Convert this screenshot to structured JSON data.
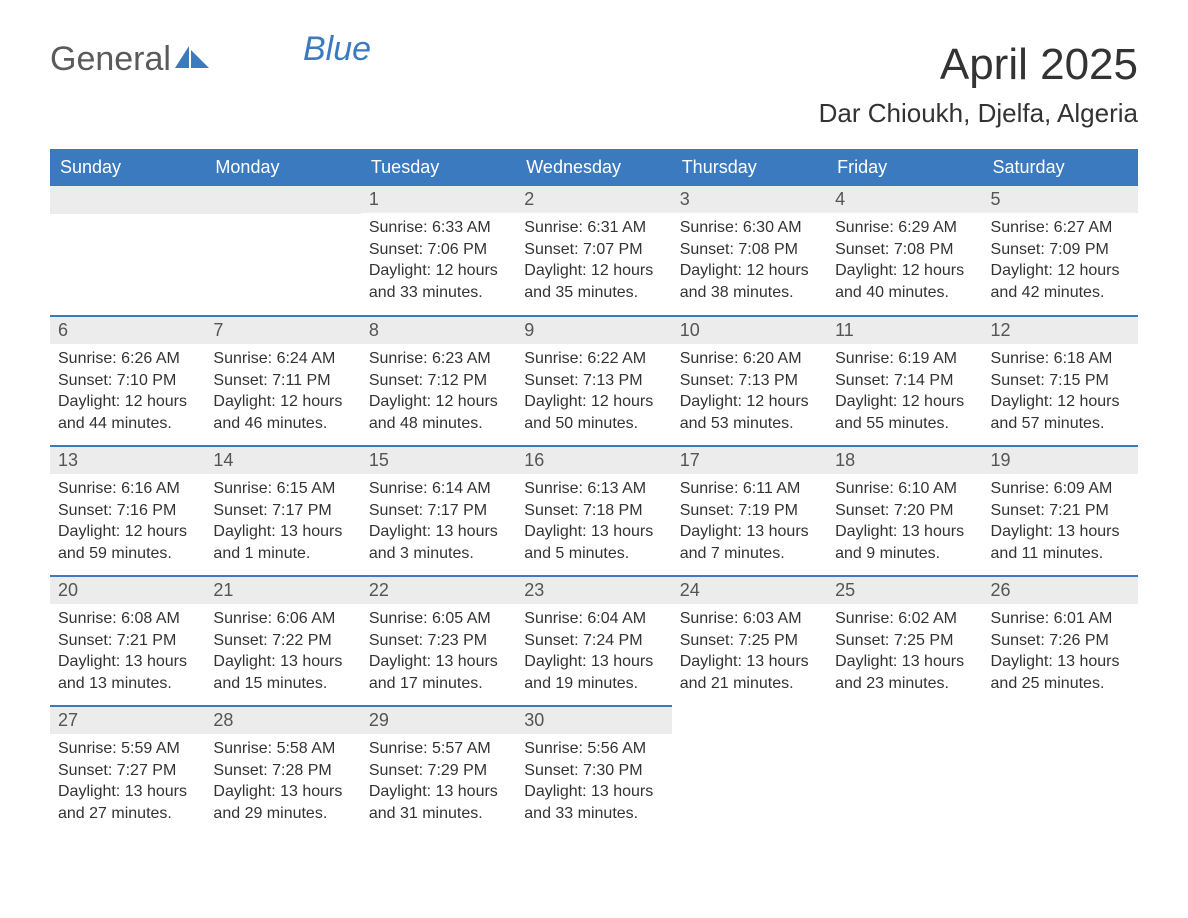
{
  "logo": {
    "text1": "General",
    "text2": "Blue"
  },
  "title": "April 2025",
  "location": "Dar Chioukh, Djelfa, Algeria",
  "colors": {
    "header_bg": "#3b7abf",
    "header_text": "#ffffff",
    "daynum_bg": "#ececec",
    "row_border": "#3b7abf",
    "body_text": "#333333",
    "logo_gray": "#5a5a5a",
    "logo_blue": "#3b7abf",
    "page_bg": "#ffffff"
  },
  "fonts": {
    "title_size_pt": 33,
    "location_size_pt": 20,
    "header_size_pt": 14,
    "daynum_size_pt": 14,
    "content_size_pt": 12
  },
  "weekdays": [
    "Sunday",
    "Monday",
    "Tuesday",
    "Wednesday",
    "Thursday",
    "Friday",
    "Saturday"
  ],
  "weeks": [
    [
      null,
      null,
      {
        "n": "1",
        "sr": "Sunrise: 6:33 AM",
        "ss": "Sunset: 7:06 PM",
        "dl": "Daylight: 12 hours and 33 minutes."
      },
      {
        "n": "2",
        "sr": "Sunrise: 6:31 AM",
        "ss": "Sunset: 7:07 PM",
        "dl": "Daylight: 12 hours and 35 minutes."
      },
      {
        "n": "3",
        "sr": "Sunrise: 6:30 AM",
        "ss": "Sunset: 7:08 PM",
        "dl": "Daylight: 12 hours and 38 minutes."
      },
      {
        "n": "4",
        "sr": "Sunrise: 6:29 AM",
        "ss": "Sunset: 7:08 PM",
        "dl": "Daylight: 12 hours and 40 minutes."
      },
      {
        "n": "5",
        "sr": "Sunrise: 6:27 AM",
        "ss": "Sunset: 7:09 PM",
        "dl": "Daylight: 12 hours and 42 minutes."
      }
    ],
    [
      {
        "n": "6",
        "sr": "Sunrise: 6:26 AM",
        "ss": "Sunset: 7:10 PM",
        "dl": "Daylight: 12 hours and 44 minutes."
      },
      {
        "n": "7",
        "sr": "Sunrise: 6:24 AM",
        "ss": "Sunset: 7:11 PM",
        "dl": "Daylight: 12 hours and 46 minutes."
      },
      {
        "n": "8",
        "sr": "Sunrise: 6:23 AM",
        "ss": "Sunset: 7:12 PM",
        "dl": "Daylight: 12 hours and 48 minutes."
      },
      {
        "n": "9",
        "sr": "Sunrise: 6:22 AM",
        "ss": "Sunset: 7:13 PM",
        "dl": "Daylight: 12 hours and 50 minutes."
      },
      {
        "n": "10",
        "sr": "Sunrise: 6:20 AM",
        "ss": "Sunset: 7:13 PM",
        "dl": "Daylight: 12 hours and 53 minutes."
      },
      {
        "n": "11",
        "sr": "Sunrise: 6:19 AM",
        "ss": "Sunset: 7:14 PM",
        "dl": "Daylight: 12 hours and 55 minutes."
      },
      {
        "n": "12",
        "sr": "Sunrise: 6:18 AM",
        "ss": "Sunset: 7:15 PM",
        "dl": "Daylight: 12 hours and 57 minutes."
      }
    ],
    [
      {
        "n": "13",
        "sr": "Sunrise: 6:16 AM",
        "ss": "Sunset: 7:16 PM",
        "dl": "Daylight: 12 hours and 59 minutes."
      },
      {
        "n": "14",
        "sr": "Sunrise: 6:15 AM",
        "ss": "Sunset: 7:17 PM",
        "dl": "Daylight: 13 hours and 1 minute."
      },
      {
        "n": "15",
        "sr": "Sunrise: 6:14 AM",
        "ss": "Sunset: 7:17 PM",
        "dl": "Daylight: 13 hours and 3 minutes."
      },
      {
        "n": "16",
        "sr": "Sunrise: 6:13 AM",
        "ss": "Sunset: 7:18 PM",
        "dl": "Daylight: 13 hours and 5 minutes."
      },
      {
        "n": "17",
        "sr": "Sunrise: 6:11 AM",
        "ss": "Sunset: 7:19 PM",
        "dl": "Daylight: 13 hours and 7 minutes."
      },
      {
        "n": "18",
        "sr": "Sunrise: 6:10 AM",
        "ss": "Sunset: 7:20 PM",
        "dl": "Daylight: 13 hours and 9 minutes."
      },
      {
        "n": "19",
        "sr": "Sunrise: 6:09 AM",
        "ss": "Sunset: 7:21 PM",
        "dl": "Daylight: 13 hours and 11 minutes."
      }
    ],
    [
      {
        "n": "20",
        "sr": "Sunrise: 6:08 AM",
        "ss": "Sunset: 7:21 PM",
        "dl": "Daylight: 13 hours and 13 minutes."
      },
      {
        "n": "21",
        "sr": "Sunrise: 6:06 AM",
        "ss": "Sunset: 7:22 PM",
        "dl": "Daylight: 13 hours and 15 minutes."
      },
      {
        "n": "22",
        "sr": "Sunrise: 6:05 AM",
        "ss": "Sunset: 7:23 PM",
        "dl": "Daylight: 13 hours and 17 minutes."
      },
      {
        "n": "23",
        "sr": "Sunrise: 6:04 AM",
        "ss": "Sunset: 7:24 PM",
        "dl": "Daylight: 13 hours and 19 minutes."
      },
      {
        "n": "24",
        "sr": "Sunrise: 6:03 AM",
        "ss": "Sunset: 7:25 PM",
        "dl": "Daylight: 13 hours and 21 minutes."
      },
      {
        "n": "25",
        "sr": "Sunrise: 6:02 AM",
        "ss": "Sunset: 7:25 PM",
        "dl": "Daylight: 13 hours and 23 minutes."
      },
      {
        "n": "26",
        "sr": "Sunrise: 6:01 AM",
        "ss": "Sunset: 7:26 PM",
        "dl": "Daylight: 13 hours and 25 minutes."
      }
    ],
    [
      {
        "n": "27",
        "sr": "Sunrise: 5:59 AM",
        "ss": "Sunset: 7:27 PM",
        "dl": "Daylight: 13 hours and 27 minutes."
      },
      {
        "n": "28",
        "sr": "Sunrise: 5:58 AM",
        "ss": "Sunset: 7:28 PM",
        "dl": "Daylight: 13 hours and 29 minutes."
      },
      {
        "n": "29",
        "sr": "Sunrise: 5:57 AM",
        "ss": "Sunset: 7:29 PM",
        "dl": "Daylight: 13 hours and 31 minutes."
      },
      {
        "n": "30",
        "sr": "Sunrise: 5:56 AM",
        "ss": "Sunset: 7:30 PM",
        "dl": "Daylight: 13 hours and 33 minutes."
      },
      null,
      null,
      null
    ]
  ]
}
